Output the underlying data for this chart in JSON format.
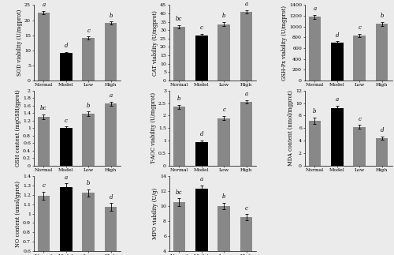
{
  "subplots": [
    {
      "ylabel": "SOD viability (U/mgprot)",
      "categories": [
        "Normal",
        "Model",
        "Low",
        "High"
      ],
      "values": [
        22.5,
        9.0,
        14.0,
        19.0
      ],
      "errors": [
        0.6,
        0.4,
        0.5,
        0.5
      ],
      "letters": [
        "a",
        "d",
        "c",
        "b"
      ],
      "colors": [
        "#888888",
        "#000000",
        "#888888",
        "#888888"
      ],
      "ylim": [
        0,
        25
      ],
      "yticks": [
        0,
        5,
        10,
        15,
        20,
        25
      ]
    },
    {
      "ylabel": "CAT viability (U/mgprot)",
      "categories": [
        "Normal",
        "Model",
        "Low",
        "High"
      ],
      "values": [
        32.0,
        27.0,
        33.5,
        41.0
      ],
      "errors": [
        1.0,
        0.9,
        1.2,
        0.9
      ],
      "letters": [
        "bc",
        "c",
        "b",
        "a"
      ],
      "colors": [
        "#888888",
        "#000000",
        "#888888",
        "#888888"
      ],
      "ylim": [
        0,
        45
      ],
      "yticks": [
        0,
        5,
        10,
        15,
        20,
        25,
        30,
        35,
        40,
        45
      ]
    },
    {
      "ylabel": "GSH-Px viability (U/mgprot)",
      "categories": [
        "Normal",
        "Model",
        "Low",
        "High"
      ],
      "values": [
        1180,
        700,
        840,
        1050
      ],
      "errors": [
        35,
        25,
        30,
        35
      ],
      "letters": [
        "a",
        "d",
        "c",
        "b"
      ],
      "colors": [
        "#888888",
        "#000000",
        "#888888",
        "#888888"
      ],
      "ylim": [
        0,
        1400
      ],
      "yticks": [
        0,
        200,
        400,
        600,
        800,
        1000,
        1200,
        1400
      ]
    },
    {
      "ylabel": "GSH content (mgGSH/gprot)",
      "categories": [
        "Normal",
        "Model",
        "Low",
        "High"
      ],
      "values": [
        1.3,
        1.0,
        1.38,
        1.65
      ],
      "errors": [
        0.07,
        0.04,
        0.06,
        0.05
      ],
      "letters": [
        "bc",
        "c",
        "b",
        "a"
      ],
      "colors": [
        "#888888",
        "#000000",
        "#888888",
        "#888888"
      ],
      "ylim": [
        0,
        2.0
      ],
      "yticks": [
        0,
        0.2,
        0.4,
        0.6,
        0.8,
        1.0,
        1.2,
        1.4,
        1.6,
        1.8,
        2.0
      ]
    },
    {
      "ylabel": "T-AOC viability (U/mgprot)",
      "categories": [
        "Normal",
        "Model",
        "Low",
        "High"
      ],
      "values": [
        2.35,
        0.95,
        1.9,
        2.55
      ],
      "errors": [
        0.08,
        0.06,
        0.08,
        0.07
      ],
      "letters": [
        "b",
        "d",
        "c",
        "a"
      ],
      "colors": [
        "#888888",
        "#000000",
        "#888888",
        "#888888"
      ],
      "ylim": [
        0,
        3.0
      ],
      "yticks": [
        0,
        0.5,
        1.0,
        1.5,
        2.0,
        2.5,
        3.0
      ]
    },
    {
      "ylabel": "MDA content (nmol/mgprot)",
      "categories": [
        "Normal",
        "Model",
        "Low",
        "High"
      ],
      "values": [
        7.2,
        9.2,
        6.2,
        4.4
      ],
      "errors": [
        0.5,
        0.4,
        0.3,
        0.3
      ],
      "letters": [
        "b",
        "a",
        "c",
        "d"
      ],
      "colors": [
        "#888888",
        "#000000",
        "#888888",
        "#888888"
      ],
      "ylim": [
        0,
        12
      ],
      "yticks": [
        0,
        2,
        4,
        6,
        8,
        10,
        12
      ]
    },
    {
      "ylabel": "NO content (umol/gprot)",
      "categories": [
        "Normal",
        "Model",
        "Low",
        "High"
      ],
      "values": [
        1.19,
        1.28,
        1.22,
        1.07
      ],
      "errors": [
        0.04,
        0.04,
        0.04,
        0.04
      ],
      "letters": [
        "c",
        "a",
        "b",
        "d"
      ],
      "colors": [
        "#888888",
        "#000000",
        "#888888",
        "#888888"
      ],
      "ylim": [
        0.6,
        1.4
      ],
      "yticks": [
        0.6,
        0.7,
        0.8,
        0.9,
        1.0,
        1.1,
        1.2,
        1.3,
        1.4
      ]
    },
    {
      "ylabel": "MPO viability (U/g)",
      "categories": [
        "Normal",
        "Model",
        "Low",
        "High"
      ],
      "values": [
        10.5,
        12.3,
        10.0,
        8.5
      ],
      "errors": [
        0.5,
        0.4,
        0.4,
        0.4
      ],
      "letters": [
        "bc",
        "a",
        "b",
        "c"
      ],
      "colors": [
        "#888888",
        "#000000",
        "#888888",
        "#888888"
      ],
      "ylim": [
        4,
        14
      ],
      "yticks": [
        4,
        6,
        8,
        10,
        12,
        14
      ]
    }
  ],
  "bar_width": 0.55,
  "font_size_label": 4.8,
  "font_size_tick": 4.5,
  "font_size_letter": 5.0,
  "error_capsize": 1.5,
  "error_linewidth": 0.6,
  "background_color": "#ebebeb"
}
